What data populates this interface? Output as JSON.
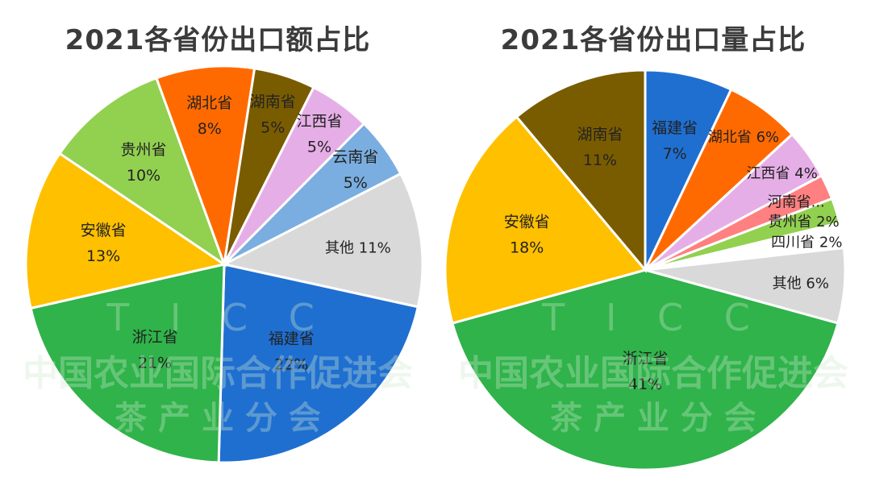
{
  "chart_data": [
    {
      "type": "pie",
      "title": "2021各省份出口额占比",
      "slices": [
        {
          "label": "湖北省",
          "value": 8,
          "pct": "8%",
          "color": "#ff6a00"
        },
        {
          "label": "湖南省",
          "value": 5,
          "pct": "5%",
          "color": "#7a5c00"
        },
        {
          "label": "江西省",
          "value": 5,
          "pct": "5%",
          "color": "#e6aee6"
        },
        {
          "label": "云南省",
          "value": 5,
          "pct": "5%",
          "color": "#7aaee0"
        },
        {
          "label": "其他",
          "value": 11,
          "pct": "11%",
          "color": "#d9d9d9"
        },
        {
          "label": "福建省",
          "value": 22,
          "pct": "22%",
          "color": "#1f6fd1"
        },
        {
          "label": "浙江省",
          "value": 21,
          "pct": "21%",
          "color": "#2fb34a"
        },
        {
          "label": "安徽省",
          "value": 13,
          "pct": "13%",
          "color": "#ffc000"
        },
        {
          "label": "贵州省",
          "value": 10,
          "pct": "10%",
          "color": "#92d050"
        }
      ]
    },
    {
      "type": "pie",
      "title": "2021各省份出口量占比",
      "slices": [
        {
          "label": "福建省",
          "value": 7,
          "pct": "7%",
          "color": "#1f6fd1"
        },
        {
          "label": "湖北省",
          "value": 6,
          "pct": "6%",
          "color": "#ff6a00"
        },
        {
          "label": "江西省",
          "value": 4,
          "pct": "4%",
          "color": "#e6aee6"
        },
        {
          "label": "河南省...",
          "value": 2,
          "pct": "",
          "color": "#ff8080"
        },
        {
          "label": "贵州省",
          "value": 2,
          "pct": "2%",
          "color": "#92d050"
        },
        {
          "label": "四川省",
          "value": 2,
          "pct": "2%",
          "color": "#ffffff"
        },
        {
          "label": "其他",
          "value": 6,
          "pct": "6%",
          "color": "#d9d9d9"
        },
        {
          "label": "浙江省",
          "value": 41,
          "pct": "41%",
          "color": "#2fb34a"
        },
        {
          "label": "安徽省",
          "value": 18,
          "pct": "18%",
          "color": "#ffc000"
        },
        {
          "label": "湖南省",
          "value": 11,
          "pct": "11%",
          "color": "#7a5c00"
        }
      ]
    }
  ],
  "watermark": {
    "letters": "T I C C",
    "line1": "中国农业国际合作促进会",
    "line2": "茶  产  业  分  会"
  }
}
